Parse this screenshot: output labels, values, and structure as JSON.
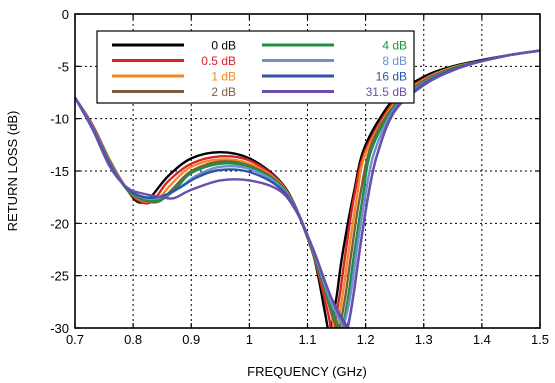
{
  "chart_data": {
    "type": "line",
    "xlabel": "FREQUENCY (GHz)",
    "ylabel": "RETURN LOSS (dB)",
    "xlim": [
      0.7,
      1.5
    ],
    "ylim": [
      -30,
      0
    ],
    "xticks": [
      "0.7",
      "0.8",
      "0.9",
      "1",
      "1.1",
      "1.2",
      "1.3",
      "1.4",
      "1.5"
    ],
    "yticks": [
      "0",
      "-5",
      "-10",
      "-15",
      "-20",
      "-25",
      "-30"
    ],
    "grid": true,
    "legend_position": "top-left",
    "series": [
      {
        "name": "0 dB",
        "color": "#000000",
        "x": [
          0.7,
          0.73,
          0.76,
          0.79,
          0.81,
          0.83,
          0.86,
          0.9,
          0.95,
          1.0,
          1.05,
          1.08,
          1.11,
          1.13,
          1.135,
          1.14,
          1.15,
          1.16,
          1.18,
          1.2,
          1.25,
          1.3,
          1.35,
          1.4,
          1.45,
          1.5
        ],
        "y": [
          -8,
          -10.6,
          -14,
          -16.8,
          -18,
          -17.5,
          -15.5,
          -13.8,
          -13.2,
          -13.8,
          -15.8,
          -18.5,
          -23,
          -28.5,
          -30,
          -30,
          -27,
          -23,
          -17,
          -12.5,
          -8,
          -6,
          -5,
          -4.4,
          -3.9,
          -3.5
        ]
      },
      {
        "name": "0.5 dB",
        "color": "#d9232a",
        "x": [
          0.7,
          0.73,
          0.76,
          0.79,
          0.815,
          0.835,
          0.86,
          0.9,
          0.95,
          1.0,
          1.05,
          1.08,
          1.11,
          1.135,
          1.14,
          1.145,
          1.155,
          1.165,
          1.18,
          1.2,
          1.25,
          1.3,
          1.35,
          1.4,
          1.45,
          1.5
        ],
        "y": [
          -8,
          -10.6,
          -14,
          -16.8,
          -18,
          -17.8,
          -16,
          -14.3,
          -13.6,
          -14,
          -15.9,
          -18.6,
          -23,
          -28.5,
          -30,
          -30,
          -27,
          -23,
          -17.5,
          -13,
          -8.3,
          -6.2,
          -5.1,
          -4.5,
          -3.9,
          -3.5
        ]
      },
      {
        "name": "1 dB",
        "color": "#f48a1f",
        "x": [
          0.7,
          0.73,
          0.76,
          0.79,
          0.815,
          0.84,
          0.865,
          0.9,
          0.95,
          1.0,
          1.05,
          1.08,
          1.11,
          1.14,
          1.145,
          1.15,
          1.16,
          1.17,
          1.185,
          1.2,
          1.25,
          1.3,
          1.35,
          1.4,
          1.45,
          1.5
        ],
        "y": [
          -8,
          -10.7,
          -14,
          -16.8,
          -17.8,
          -17.8,
          -16.3,
          -14.6,
          -13.9,
          -14.3,
          -16,
          -18.6,
          -23,
          -28.5,
          -30,
          -30,
          -27,
          -23,
          -17.5,
          -13.3,
          -8.5,
          -6.3,
          -5.1,
          -4.5,
          -3.9,
          -3.5
        ]
      },
      {
        "name": "2 dB",
        "color": "#7d5a44",
        "x": [
          0.7,
          0.73,
          0.76,
          0.79,
          0.82,
          0.845,
          0.87,
          0.9,
          0.95,
          1.0,
          1.05,
          1.08,
          1.11,
          1.14,
          1.15,
          1.155,
          1.165,
          1.175,
          1.19,
          1.21,
          1.25,
          1.3,
          1.35,
          1.4,
          1.45,
          1.5
        ],
        "y": [
          -8,
          -10.7,
          -14.1,
          -16.8,
          -17.8,
          -17.9,
          -16.6,
          -15,
          -14.1,
          -14.5,
          -16.1,
          -18.6,
          -23,
          -28.3,
          -30,
          -30,
          -27,
          -23,
          -17.5,
          -12.5,
          -8.7,
          -6.4,
          -5.2,
          -4.5,
          -3.9,
          -3.5
        ]
      },
      {
        "name": "4 dB",
        "color": "#1e8f45",
        "x": [
          0.7,
          0.73,
          0.76,
          0.79,
          0.82,
          0.85,
          0.875,
          0.9,
          0.95,
          1.0,
          1.05,
          1.08,
          1.11,
          1.14,
          1.155,
          1.16,
          1.17,
          1.18,
          1.195,
          1.21,
          1.25,
          1.3,
          1.35,
          1.4,
          1.45,
          1.5
        ],
        "y": [
          -8,
          -10.8,
          -14.2,
          -16.8,
          -17.8,
          -17.7,
          -16.6,
          -15.2,
          -14.3,
          -14.6,
          -16.2,
          -18.6,
          -22.8,
          -28,
          -30,
          -30,
          -27,
          -23,
          -17.5,
          -13,
          -8.8,
          -6.5,
          -5.2,
          -4.5,
          -3.9,
          -3.5
        ]
      },
      {
        "name": "8 dB",
        "color": "#6f8fcf",
        "x": [
          0.7,
          0.73,
          0.76,
          0.79,
          0.82,
          0.85,
          0.88,
          0.91,
          0.95,
          1.0,
          1.05,
          1.08,
          1.11,
          1.14,
          1.16,
          1.165,
          1.175,
          1.185,
          1.2,
          1.215,
          1.25,
          1.3,
          1.35,
          1.4,
          1.45,
          1.5
        ],
        "y": [
          -8,
          -10.8,
          -14.3,
          -16.7,
          -17.6,
          -17.5,
          -16.6,
          -15.4,
          -14.6,
          -14.8,
          -16.3,
          -18.6,
          -22.6,
          -27.5,
          -29.6,
          -29.2,
          -26.5,
          -22.5,
          -17.2,
          -13.2,
          -9,
          -6.6,
          -5.3,
          -4.5,
          -3.9,
          -3.5
        ]
      },
      {
        "name": "16 dB",
        "color": "#2c55a8",
        "x": [
          0.7,
          0.73,
          0.76,
          0.79,
          0.82,
          0.85,
          0.88,
          0.91,
          0.95,
          1.0,
          1.05,
          1.08,
          1.11,
          1.14,
          1.165,
          1.17,
          1.18,
          1.19,
          1.205,
          1.22,
          1.25,
          1.3,
          1.35,
          1.4,
          1.45,
          1.5
        ],
        "y": [
          -8,
          -10.9,
          -14.4,
          -16.7,
          -17.5,
          -17.4,
          -16.6,
          -15.6,
          -14.9,
          -15.1,
          -16.5,
          -18.7,
          -22.5,
          -27,
          -29.6,
          -29.6,
          -26.5,
          -22.5,
          -17.2,
          -13.4,
          -9.2,
          -6.7,
          -5.3,
          -4.5,
          -3.9,
          -3.5
        ]
      },
      {
        "name": "31.5 dB",
        "color": "#6b4fae",
        "x": [
          0.7,
          0.73,
          0.76,
          0.79,
          0.82,
          0.85,
          0.87,
          0.9,
          0.95,
          1.0,
          1.05,
          1.08,
          1.11,
          1.14,
          1.165,
          1.17,
          1.18,
          1.19,
          1.205,
          1.22,
          1.25,
          1.3,
          1.35,
          1.4,
          1.45,
          1.5
        ],
        "y": [
          -8,
          -11,
          -14.6,
          -16.6,
          -17.2,
          -17.5,
          -17.6,
          -16.8,
          -15.9,
          -15.9,
          -16.8,
          -18.8,
          -22.5,
          -27,
          -29.8,
          -29.8,
          -26.5,
          -22.5,
          -17.2,
          -13.4,
          -9.3,
          -6.8,
          -5.4,
          -4.5,
          -3.9,
          -3.5
        ]
      }
    ]
  }
}
